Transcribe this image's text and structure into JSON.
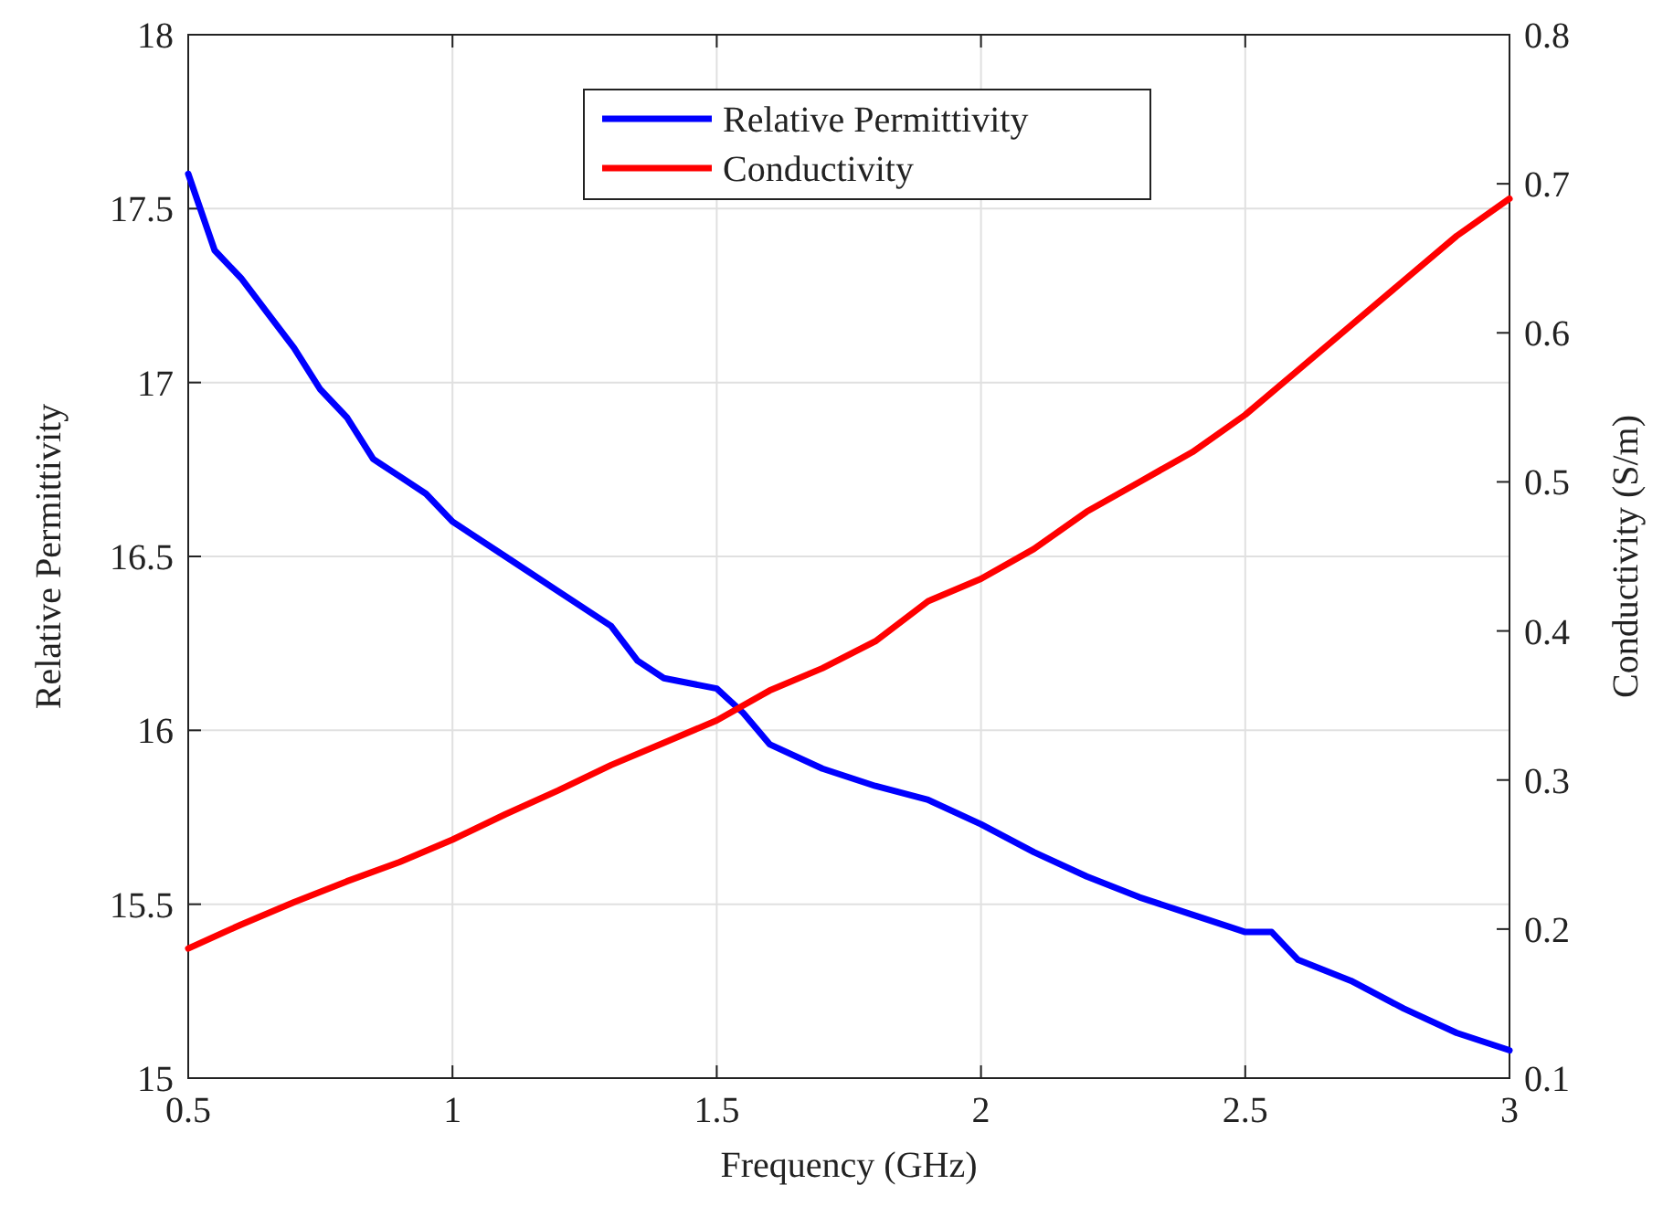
{
  "chart_data": {
    "type": "line",
    "xlabel": "Frequency (GHz)",
    "ylabel": "Relative Permittivity",
    "y2label": "Conductivity (S/m)",
    "xlim": [
      0.5,
      3
    ],
    "xticks": [
      0.5,
      1,
      1.5,
      2,
      2.5,
      3
    ],
    "ylim": [
      15,
      18
    ],
    "yticks": [
      15,
      15.5,
      16,
      16.5,
      17,
      17.5,
      18
    ],
    "y2lim": [
      0.1,
      0.8
    ],
    "y2ticks": [
      0.1,
      0.2,
      0.3,
      0.4,
      0.5,
      0.6,
      0.7,
      0.8
    ],
    "grid": true,
    "legend": "top",
    "marker": "none",
    "line_style": "solid",
    "series": [
      {
        "name": "Relative Permittivity",
        "color": "#0000ff",
        "x": [
          0.5,
          0.55,
          0.6,
          0.65,
          0.7,
          0.75,
          0.8,
          0.85,
          0.9,
          0.95,
          1,
          1.1,
          1.2,
          1.3,
          1.35,
          1.4,
          1.5,
          1.55,
          1.6,
          1.7,
          1.8,
          1.9,
          2,
          2.1,
          2.2,
          2.3,
          2.4,
          2.5,
          2.55,
          2.6,
          2.7,
          2.8,
          2.9,
          3
        ],
        "values": [
          17.6,
          17.38,
          17.3,
          17.2,
          17.1,
          16.98,
          16.9,
          16.78,
          16.73,
          16.68,
          16.6,
          16.5,
          16.4,
          16.3,
          16.2,
          16.15,
          16.12,
          16.05,
          15.96,
          15.89,
          15.84,
          15.8,
          15.73,
          15.65,
          15.58,
          15.52,
          15.47,
          15.42,
          15.42,
          15.34,
          15.28,
          15.2,
          15.13,
          15.08
        ]
      },
      {
        "name": "Conductivity",
        "color": "#ff0000",
        "axis": "y2",
        "x": [
          0.5,
          0.6,
          0.7,
          0.8,
          0.9,
          1,
          1.1,
          1.2,
          1.3,
          1.4,
          1.5,
          1.6,
          1.7,
          1.8,
          1.9,
          2,
          2.1,
          2.2,
          2.3,
          2.4,
          2.5,
          2.6,
          2.7,
          2.8,
          2.9,
          3
        ],
        "values": [
          0.187,
          0.203,
          0.218,
          0.232,
          0.245,
          0.26,
          0.277,
          0.293,
          0.31,
          0.325,
          0.34,
          0.36,
          0.375,
          0.393,
          0.42,
          0.435,
          0.455,
          0.48,
          0.5,
          0.52,
          0.545,
          0.575,
          0.605,
          0.635,
          0.665,
          0.69
        ]
      }
    ]
  }
}
